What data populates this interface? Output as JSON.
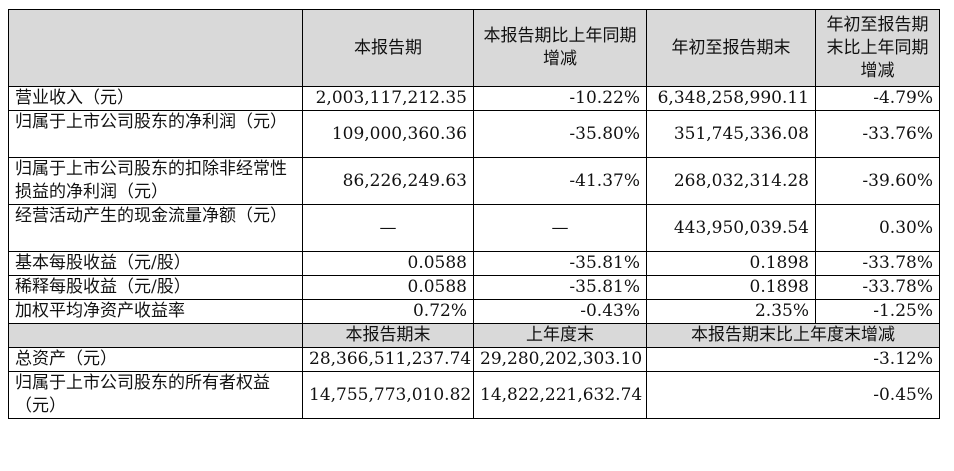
{
  "header": {
    "corner": "",
    "col1": "本报告期",
    "col2": "本报告期比上年同期增减",
    "col3": "年初至报告期末",
    "col4": "年初至报告期末比上年同期增减"
  },
  "rows": [
    {
      "label": "营业收入（元）",
      "v1": "2,003,117,212.35",
      "v2": "-10.22%",
      "v3": "6,348,258,990.11",
      "v4": "-4.79%"
    },
    {
      "label": "归属于上市公司股东的净利润（元）",
      "v1": "109,000,360.36",
      "v2": "-35.80%",
      "v3": "351,745,336.08",
      "v4": "-33.76%"
    },
    {
      "label": "归属于上市公司股东的扣除非经常性损益的净利润（元）",
      "v1": "86,226,249.63",
      "v2": "-41.37%",
      "v3": "268,032,314.28",
      "v4": "-39.60%"
    },
    {
      "label": "经营活动产生的现金流量净额（元）",
      "v1": "—",
      "v2": "—",
      "v3": "443,950,039.54",
      "v4": "0.30%"
    },
    {
      "label": "基本每股收益（元/股）",
      "v1": "0.0588",
      "v2": "-35.81%",
      "v3": "0.1898",
      "v4": "-33.78%"
    },
    {
      "label": "稀释每股收益（元/股）",
      "v1": "0.0588",
      "v2": "-35.81%",
      "v3": "0.1898",
      "v4": "-33.78%"
    },
    {
      "label": "加权平均净资产收益率",
      "v1": "0.72%",
      "v2": "-0.43%",
      "v3": "2.35%",
      "v4": "-1.25%"
    }
  ],
  "subheader": {
    "col1": "本报告期末",
    "col2": "上年度末",
    "col34": "本报告期末比上年度末增减"
  },
  "rows2": [
    {
      "label": "总资产（元）",
      "v1": "28,366,511,237.74",
      "v2": "29,280,202,303.10",
      "v34": "-3.12%"
    },
    {
      "label": "归属于上市公司股东的所有者权益（元）",
      "v1": "14,755,773,010.82",
      "v2": "14,822,221,632.74",
      "v34": "-0.45%"
    }
  ],
  "colors": {
    "header_bg": "#d9d9d9",
    "border": "#000000"
  }
}
